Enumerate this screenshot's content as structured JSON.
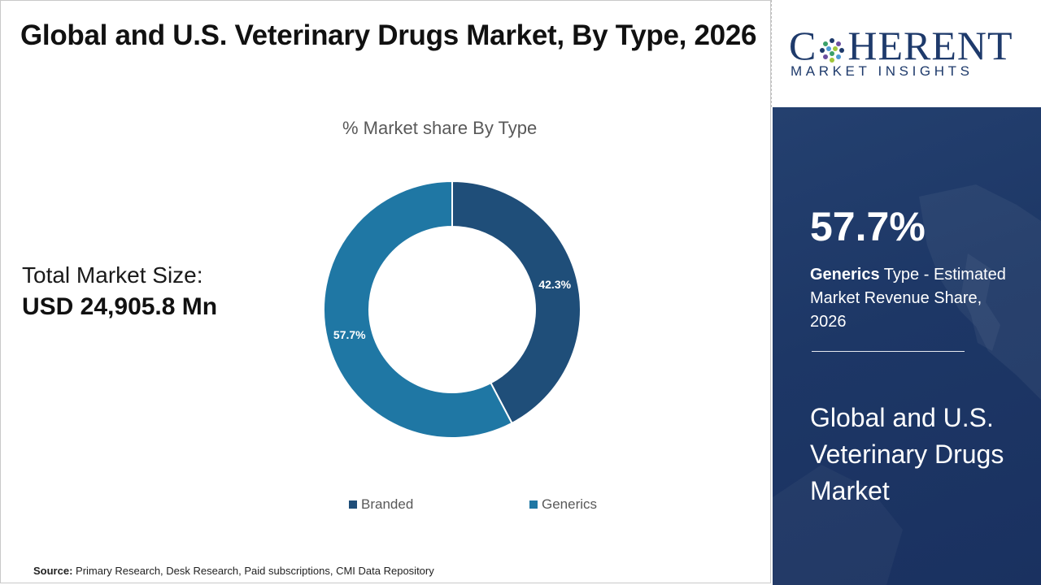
{
  "title": "Global and U.S. Veterinary Drugs Market, By Type, 2026",
  "market_size": {
    "label": "Total Market Size:",
    "value": "USD 24,905.8 Mn"
  },
  "chart_data": {
    "type": "pie",
    "subtitle": "% Market share By Type",
    "categories": [
      "Branded",
      "Generics"
    ],
    "values": [
      42.3,
      57.7
    ],
    "data_labels": [
      "42.3%",
      "57.7%"
    ],
    "colors": [
      "#1f4e79",
      "#1f77a4"
    ],
    "donut": true,
    "legend_position": "bottom"
  },
  "source": {
    "label": "Source:",
    "text": "Primary Research, Desk Research, Paid subscriptions, CMI Data Repository"
  },
  "logo": {
    "name_start": "C",
    "name_end": "HERENT",
    "subtitle": "MARKET INSIGHTS"
  },
  "highlight": {
    "value": "57.7%",
    "segment": "Generics",
    "desc_rest": " Type - Estimated Market Revenue Share, 2026"
  },
  "side_title": "Global and U.S. Veterinary Drugs Market",
  "colors": {
    "panel_bg": "#1d3766",
    "branded": "#1f4e79",
    "generics": "#1f77a4"
  }
}
